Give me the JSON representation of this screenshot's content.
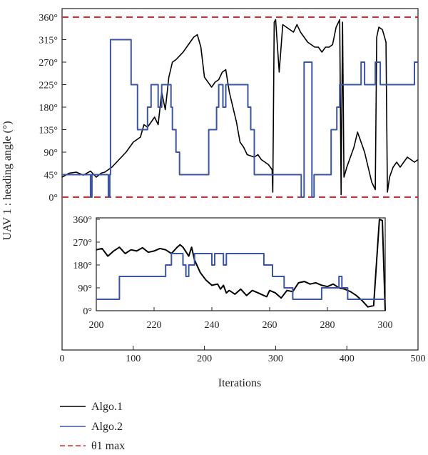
{
  "chart_data": [
    {
      "id": "main",
      "type": "line",
      "title": "",
      "xlabel": "Iterations",
      "ylabel": "UAV 1 : heading angle (°)",
      "xlim": [
        0,
        500
      ],
      "ylim": [
        0,
        360
      ],
      "x_ticks": [
        "0",
        "100",
        "200",
        "300",
        "400",
        "500"
      ],
      "y_ticks": [
        "0°",
        "45°",
        "90°",
        "135°",
        "180°",
        "225°",
        "270°",
        "315°",
        "360°"
      ],
      "grid": false,
      "legend_position": "below plot",
      "threshold": {
        "name": "θ1 max",
        "values": [
          0,
          360
        ],
        "color": "#e8262a",
        "style": "dashed"
      },
      "series": [
        {
          "name": "Algo.1",
          "color": "#000000",
          "points": [
            [
              0,
              40
            ],
            [
              10,
              48
            ],
            [
              20,
              50
            ],
            [
              30,
              44
            ],
            [
              40,
              52
            ],
            [
              48,
              40
            ],
            [
              55,
              48
            ],
            [
              60,
              50
            ],
            [
              70,
              60
            ],
            [
              80,
              75
            ],
            [
              90,
              90
            ],
            [
              100,
              110
            ],
            [
              110,
              120
            ],
            [
              115,
              145
            ],
            [
              120,
              140
            ],
            [
              125,
              150
            ],
            [
              130,
              160
            ],
            [
              135,
              145
            ],
            [
              140,
              210
            ],
            [
              145,
              175
            ],
            [
              150,
              240
            ],
            [
              155,
              270
            ],
            [
              160,
              275
            ],
            [
              170,
              290
            ],
            [
              180,
              310
            ],
            [
              185,
              320
            ],
            [
              190,
              325
            ],
            [
              195,
              300
            ],
            [
              200,
              240
            ],
            [
              205,
              230
            ],
            [
              210,
              220
            ],
            [
              215,
              230
            ],
            [
              220,
              235
            ],
            [
              225,
              250
            ],
            [
              230,
              255
            ],
            [
              235,
              210
            ],
            [
              240,
              180
            ],
            [
              245,
              150
            ],
            [
              250,
              110
            ],
            [
              255,
              100
            ],
            [
              260,
              85
            ],
            [
              270,
              80
            ],
            [
              275,
              85
            ],
            [
              280,
              75
            ],
            [
              290,
              65
            ],
            [
              295,
              55
            ],
            [
              296,
              10
            ],
            [
              298,
              350
            ],
            [
              300,
              355
            ],
            [
              305,
              250
            ],
            [
              310,
              345
            ],
            [
              315,
              340
            ],
            [
              320,
              335
            ],
            [
              325,
              330
            ],
            [
              330,
              345
            ],
            [
              335,
              330
            ],
            [
              340,
              320
            ],
            [
              345,
              310
            ],
            [
              350,
              305
            ],
            [
              355,
              300
            ],
            [
              360,
              300
            ],
            [
              365,
              290
            ],
            [
              370,
              300
            ],
            [
              375,
              300
            ],
            [
              380,
              305
            ],
            [
              385,
              340
            ],
            [
              390,
              355
            ],
            [
              392,
              5
            ],
            [
              394,
              350
            ],
            [
              396,
              40
            ],
            [
              400,
              60
            ],
            [
              405,
              80
            ],
            [
              410,
              100
            ],
            [
              415,
              130
            ],
            [
              420,
              110
            ],
            [
              425,
              90
            ],
            [
              430,
              60
            ],
            [
              435,
              30
            ],
            [
              440,
              15
            ],
            [
              442,
              320
            ],
            [
              445,
              340
            ],
            [
              450,
              335
            ],
            [
              455,
              310
            ],
            [
              457,
              10
            ],
            [
              460,
              40
            ],
            [
              465,
              60
            ],
            [
              470,
              70
            ],
            [
              475,
              60
            ],
            [
              480,
              70
            ],
            [
              485,
              80
            ],
            [
              490,
              75
            ],
            [
              495,
              70
            ],
            [
              500,
              75
            ]
          ]
        },
        {
          "name": "Algo.2",
          "color": "#3b55a4",
          "points": [
            [
              0,
              45
            ],
            [
              40,
              45
            ],
            [
              40,
              0
            ],
            [
              42,
              0
            ],
            [
              42,
              45
            ],
            [
              65,
              45
            ],
            [
              65,
              0
            ],
            [
              67,
              0
            ],
            [
              67,
              45
            ],
            [
              68,
              45
            ],
            [
              68,
              315
            ],
            [
              97,
              315
            ],
            [
              97,
              225
            ],
            [
              106,
              225
            ],
            [
              106,
              135
            ],
            [
              120,
              135
            ],
            [
              120,
              180
            ],
            [
              125,
              180
            ],
            [
              125,
              225
            ],
            [
              135,
              225
            ],
            [
              135,
              180
            ],
            [
              140,
              180
            ],
            [
              140,
              225
            ],
            [
              153,
              225
            ],
            [
              153,
              180
            ],
            [
              155,
              180
            ],
            [
              155,
              135
            ],
            [
              160,
              135
            ],
            [
              160,
              90
            ],
            [
              165,
              90
            ],
            [
              165,
              45
            ],
            [
              206,
              45
            ],
            [
              206,
              135
            ],
            [
              217,
              135
            ],
            [
              217,
              180
            ],
            [
              220,
              180
            ],
            [
              220,
              225
            ],
            [
              226,
              225
            ],
            [
              226,
              180
            ],
            [
              230,
              180
            ],
            [
              230,
              225
            ],
            [
              233,
              225
            ],
            [
              233,
              225
            ],
            [
              261,
              225
            ],
            [
              261,
              180
            ],
            [
              265,
              180
            ],
            [
              265,
              135
            ],
            [
              270,
              135
            ],
            [
              270,
              45
            ],
            [
              336,
              45
            ],
            [
              336,
              0
            ],
            [
              340,
              0
            ],
            [
              340,
              270
            ],
            [
              351,
              270
            ],
            [
              351,
              0
            ],
            [
              354,
              0
            ],
            [
              354,
              45
            ],
            [
              378,
              45
            ],
            [
              378,
              135
            ],
            [
              386,
              135
            ],
            [
              386,
              180
            ],
            [
              390,
              180
            ],
            [
              390,
              225
            ],
            [
              420,
              225
            ],
            [
              420,
              270
            ],
            [
              425,
              270
            ],
            [
              425,
              225
            ],
            [
              440,
              225
            ],
            [
              440,
              270
            ],
            [
              447,
              270
            ],
            [
              447,
              225
            ],
            [
              495,
              225
            ],
            [
              495,
              270
            ],
            [
              500,
              270
            ]
          ]
        },
        {
          "name": "θ1 max",
          "color": "#e8262a",
          "style": "dashed",
          "values": [
            0,
            360
          ]
        }
      ]
    },
    {
      "id": "inset",
      "type": "line",
      "title": "",
      "xlim": [
        200,
        300
      ],
      "ylim": [
        0,
        360
      ],
      "x_ticks": [
        "200",
        "220",
        "240",
        "260",
        "280",
        "300"
      ],
      "y_ticks": [
        "0°",
        "90°",
        "180°",
        "270°",
        "360°"
      ],
      "grid": false,
      "series": [
        {
          "name": "Algo.1",
          "color": "#000000",
          "points": [
            [
              200,
              240
            ],
            [
              202,
              245
            ],
            [
              204,
              215
            ],
            [
              206,
              235
            ],
            [
              208,
              250
            ],
            [
              210,
              225
            ],
            [
              212,
              240
            ],
            [
              214,
              235
            ],
            [
              216,
              248
            ],
            [
              218,
              230
            ],
            [
              220,
              235
            ],
            [
              222,
              245
            ],
            [
              224,
              240
            ],
            [
              226,
              225
            ],
            [
              228,
              250
            ],
            [
              229,
              260
            ],
            [
              230,
              250
            ],
            [
              232,
              215
            ],
            [
              233,
              250
            ],
            [
              234,
              200
            ],
            [
              236,
              150
            ],
            [
              238,
              120
            ],
            [
              240,
              100
            ],
            [
              242,
              105
            ],
            [
              243,
              85
            ],
            [
              244,
              100
            ],
            [
              245,
              70
            ],
            [
              246,
              80
            ],
            [
              248,
              65
            ],
            [
              250,
              85
            ],
            [
              252,
              60
            ],
            [
              254,
              80
            ],
            [
              256,
              70
            ],
            [
              258,
              60
            ],
            [
              259,
              55
            ],
            [
              260,
              80
            ],
            [
              262,
              70
            ],
            [
              264,
              50
            ],
            [
              266,
              80
            ],
            [
              268,
              75
            ],
            [
              270,
              110
            ],
            [
              272,
              115
            ],
            [
              274,
              105
            ],
            [
              276,
              110
            ],
            [
              278,
              100
            ],
            [
              280,
              95
            ],
            [
              282,
              105
            ],
            [
              284,
              90
            ],
            [
              286,
              85
            ],
            [
              288,
              75
            ],
            [
              290,
              60
            ],
            [
              292,
              40
            ],
            [
              294,
              15
            ],
            [
              296,
              20
            ],
            [
              298,
              360
            ],
            [
              299,
              355
            ],
            [
              300,
              0
            ]
          ]
        },
        {
          "name": "Algo.2",
          "color": "#3b55a4",
          "points": [
            [
              200,
              45
            ],
            [
              208,
              45
            ],
            [
              208,
              135
            ],
            [
              220,
              135
            ],
            [
              220,
              135
            ],
            [
              224,
              135
            ],
            [
              224,
              180
            ],
            [
              226,
              180
            ],
            [
              226,
              225
            ],
            [
              230,
              225
            ],
            [
              230,
              180
            ],
            [
              231,
              180
            ],
            [
              231,
              135
            ],
            [
              232,
              135
            ],
            [
              232,
              180
            ],
            [
              234,
              180
            ],
            [
              234,
              225
            ],
            [
              240,
              225
            ],
            [
              240,
              180
            ],
            [
              241,
              180
            ],
            [
              241,
              225
            ],
            [
              244,
              225
            ],
            [
              244,
              180
            ],
            [
              245,
              180
            ],
            [
              245,
              225
            ],
            [
              258,
              225
            ],
            [
              258,
              180
            ],
            [
              261,
              180
            ],
            [
              261,
              135
            ],
            [
              265,
              135
            ],
            [
              265,
              90
            ],
            [
              268,
              90
            ],
            [
              268,
              45
            ],
            [
              278,
              45
            ],
            [
              278,
              90
            ],
            [
              284,
              90
            ],
            [
              284,
              135
            ],
            [
              285,
              135
            ],
            [
              285,
              90
            ],
            [
              287,
              90
            ],
            [
              287,
              45
            ],
            [
              300,
              45
            ]
          ]
        }
      ]
    }
  ],
  "legend": [
    {
      "label": "Algo.1",
      "color": "#000000",
      "style": "solid"
    },
    {
      "label": "Algo.2",
      "color": "#3b55a4",
      "style": "solid"
    },
    {
      "label": "θ1 max",
      "color": "#e8262a",
      "style": "dashed"
    }
  ]
}
